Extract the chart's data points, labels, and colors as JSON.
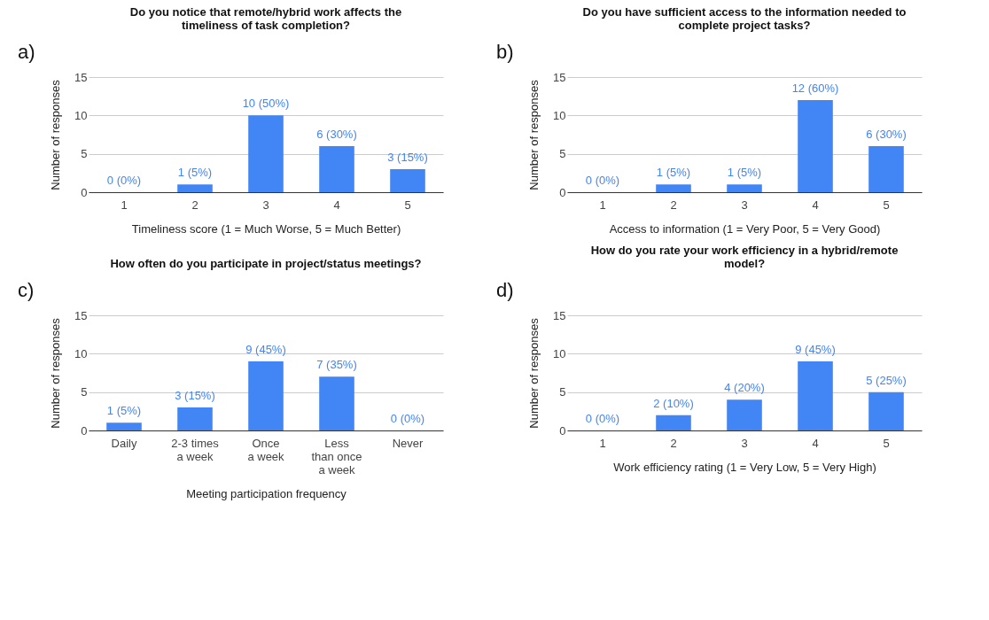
{
  "chart_data": [
    {
      "type": "bar",
      "title": "Do you notice that remote/hybrid work affects the timeliness of task completion?",
      "xlabel": "Timeliness score (1 = Much Worse, 5 = Much Better)",
      "ylabel": "Number of responses",
      "annotations": [
        "a)"
      ],
      "categories": [
        "1",
        "2",
        "3",
        "4",
        "5"
      ],
      "values": [
        0,
        1,
        10,
        6,
        3
      ],
      "value_labels": [
        "0 (0%)",
        "1 (5%)",
        "10 (50%)",
        "6 (30%)",
        "3 (15%)"
      ],
      "color": "#4285f4",
      "ylim": [
        0,
        15
      ],
      "yticks": [
        0,
        5,
        10,
        15
      ],
      "grid": "y"
    },
    {
      "type": "bar",
      "title": "Do you have sufficient access to the information needed to complete project tasks?",
      "xlabel": "Access to information (1 = Very Poor, 5 = Very Good)",
      "ylabel": "Number of responses",
      "annotations": [
        "b)"
      ],
      "categories": [
        "1",
        "2",
        "3",
        "4",
        "5"
      ],
      "values": [
        0,
        1,
        1,
        12,
        6
      ],
      "value_labels": [
        "0 (0%)",
        "1 (5%)",
        "1 (5%)",
        "12 (60%)",
        "6 (30%)"
      ],
      "color": "#4285f4",
      "ylim": [
        0,
        15
      ],
      "yticks": [
        0,
        5,
        10,
        15
      ],
      "grid": "y"
    },
    {
      "type": "bar",
      "title": "How often do you participate in project/status meetings?",
      "xlabel": "Meeting participation frequency",
      "ylabel": "Number of responses",
      "annotations": [
        "c)"
      ],
      "categories": [
        "Daily",
        "2-3 times\na week",
        "Once\na week",
        "Less\nthan once\na week",
        "Never"
      ],
      "values": [
        1,
        3,
        9,
        7,
        0
      ],
      "value_labels": [
        "1 (5%)",
        "3 (15%)",
        "9 (45%)",
        "7 (35%)",
        "0 (0%)"
      ],
      "color": "#4285f4",
      "ylim": [
        0,
        15
      ],
      "yticks": [
        0,
        5,
        10,
        15
      ],
      "grid": "y"
    },
    {
      "type": "bar",
      "title": "How do you rate your work efficiency in a hybrid/remote model?",
      "xlabel": "Work efficiency rating (1 = Very Low, 5 = Very High)",
      "ylabel": "Number of responses",
      "annotations": [
        "d)"
      ],
      "categories": [
        "1",
        "2",
        "3",
        "4",
        "5"
      ],
      "values": [
        0,
        2,
        4,
        9,
        5
      ],
      "value_labels": [
        "0 (0%)",
        "2 (10%)",
        "4 (20%)",
        "9 (45%)",
        "5 (25%)"
      ],
      "color": "#4285f4",
      "ylim": [
        0,
        15
      ],
      "yticks": [
        0,
        5,
        10,
        15
      ],
      "grid": "y"
    }
  ]
}
